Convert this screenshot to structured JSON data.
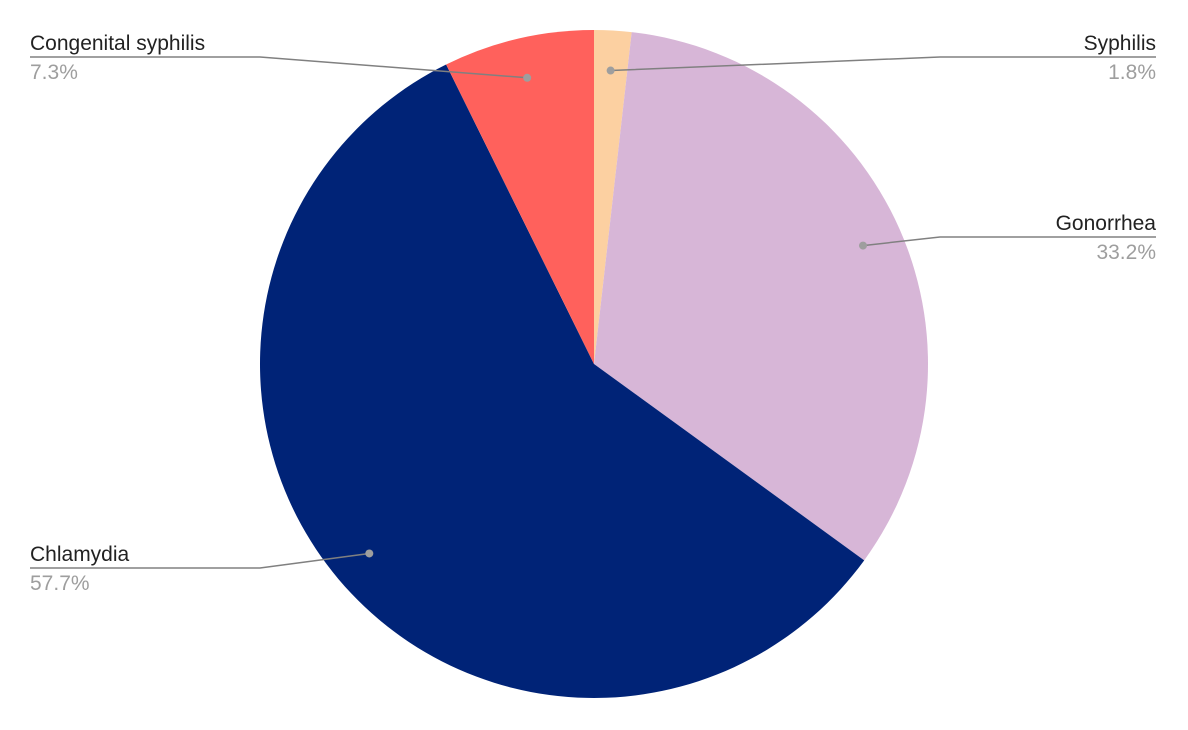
{
  "chart_data": {
    "type": "pie",
    "title": "",
    "start_angle_deg": 0,
    "direction": "clockwise",
    "slices": [
      {
        "label": "Syphilis",
        "value": 1.8,
        "value_label": "1.8%",
        "color": "#fcd0a1"
      },
      {
        "label": "Gonorrhea",
        "value": 33.2,
        "value_label": "33.2%",
        "color": "#d7b6d7"
      },
      {
        "label": "Chlamydia",
        "value": 57.7,
        "value_label": "57.7%",
        "color": "#002377"
      },
      {
        "label": "Congenital syphilis",
        "value": 7.3,
        "value_label": "7.3%",
        "color": "#ff615c"
      }
    ],
    "label_style": "leader-lines"
  }
}
